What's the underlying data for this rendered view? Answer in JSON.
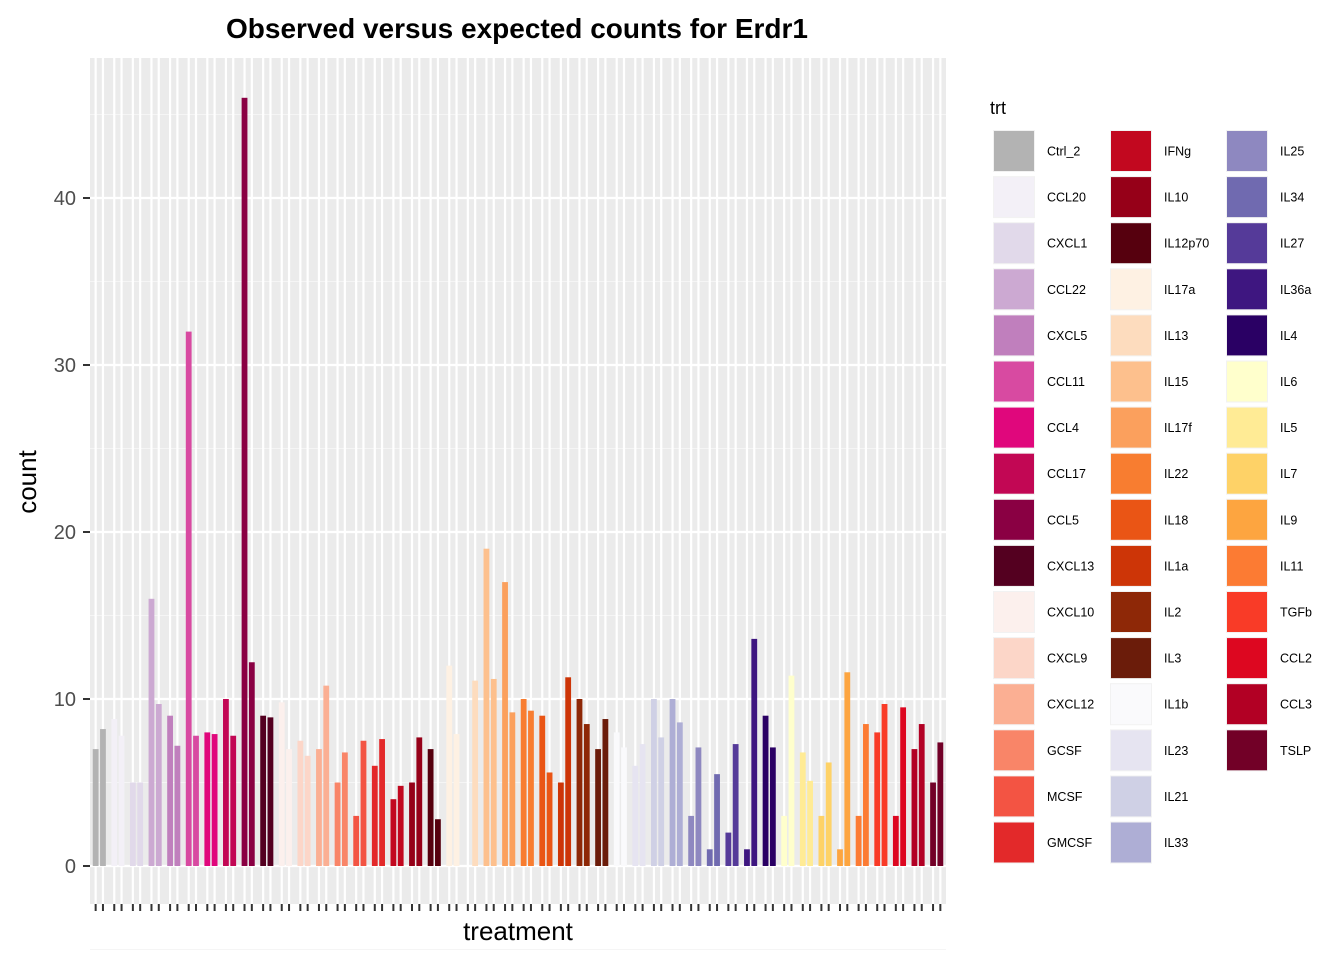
{
  "chart_data": {
    "type": "bar",
    "title": "Observed versus expected counts for Erdr1",
    "xlabel": "treatment",
    "ylabel": "count",
    "ylim": [
      0,
      47
    ],
    "yticks": [
      0,
      10,
      20,
      30,
      40
    ],
    "grid": true,
    "legend": {
      "title": "trt",
      "placement": "right",
      "columns": 3,
      "entries": [
        {
          "label": "Ctrl_2",
          "color": "#b3b3b3"
        },
        {
          "label": "CCL20",
          "color": "#f3f0f7"
        },
        {
          "label": "CXCL1",
          "color": "#e1d9ea"
        },
        {
          "label": "CCL22",
          "color": "#cca9d2"
        },
        {
          "label": "CXCL5",
          "color": "#c07fbd"
        },
        {
          "label": "CCL11",
          "color": "#d84aa1"
        },
        {
          "label": "CCL4",
          "color": "#e0077c"
        },
        {
          "label": "CCL17",
          "color": "#c20754"
        },
        {
          "label": "CCL5",
          "color": "#8a0043"
        },
        {
          "label": "CXCL13",
          "color": "#540020"
        },
        {
          "label": "CXCL10",
          "color": "#fcf0ed"
        },
        {
          "label": "CXCL9",
          "color": "#fcd6c8"
        },
        {
          "label": "CXCL12",
          "color": "#fbaf93"
        },
        {
          "label": "GCSF",
          "color": "#f98568"
        },
        {
          "label": "MCSF",
          "color": "#f35443"
        },
        {
          "label": "GMCSF",
          "color": "#e3292a"
        },
        {
          "label": "IFNg",
          "color": "#c2081f"
        },
        {
          "label": "IL10",
          "color": "#960018"
        },
        {
          "label": "IL12p70",
          "color": "#56000e"
        },
        {
          "label": "IL17a",
          "color": "#fef1e3"
        },
        {
          "label": "IL13",
          "color": "#fddcbe"
        },
        {
          "label": "IL15",
          "color": "#fdc08d"
        },
        {
          "label": "IL17f",
          "color": "#fba05d"
        },
        {
          "label": "IL22",
          "color": "#f87d30"
        },
        {
          "label": "IL18",
          "color": "#ea5515"
        },
        {
          "label": "IL1a",
          "color": "#cd3507"
        },
        {
          "label": "IL2",
          "color": "#8e2807"
        },
        {
          "label": "IL3",
          "color": "#6b1c0a"
        },
        {
          "label": "IL1b",
          "color": "#fafafc"
        },
        {
          "label": "IL23",
          "color": "#e6e4f1"
        },
        {
          "label": "IL21",
          "color": "#cfd0e5"
        },
        {
          "label": "IL33",
          "color": "#aeaed5"
        },
        {
          "label": "IL25",
          "color": "#8e88c0"
        },
        {
          "label": "IL34",
          "color": "#706ab0"
        },
        {
          "label": "IL27",
          "color": "#553a99"
        },
        {
          "label": "IL36a",
          "color": "#3e1680"
        },
        {
          "label": "IL4",
          "color": "#2a0064"
        },
        {
          "label": "IL6",
          "color": "#ffffcc"
        },
        {
          "label": "IL5",
          "color": "#ffeb95"
        },
        {
          "label": "IL7",
          "color": "#fed267"
        },
        {
          "label": "IL9",
          "color": "#fda540"
        },
        {
          "label": "IL11",
          "color": "#fc7b33"
        },
        {
          "label": "TGFb",
          "color": "#f93b27"
        },
        {
          "label": "CCL2",
          "color": "#dd0720"
        },
        {
          "label": "CCL3",
          "color": "#b20024"
        },
        {
          "label": "TSLP",
          "color": "#720027"
        }
      ]
    },
    "categories": [
      "Ctrl_2",
      "CCL20",
      "CXCL1",
      "CCL22",
      "CXCL5",
      "CCL11",
      "CCL4",
      "CCL17",
      "CCL5",
      "CXCL13",
      "CXCL10",
      "CXCL9",
      "CXCL12",
      "GCSF",
      "MCSF",
      "GMCSF",
      "IFNg",
      "IL10",
      "IL12p70",
      "IL17a",
      "IL13",
      "IL15",
      "IL17f",
      "IL22",
      "IL18",
      "IL1a",
      "IL2",
      "IL3",
      "IL1b",
      "IL23",
      "IL21",
      "IL33",
      "IL25",
      "IL34",
      "IL27",
      "IL36a",
      "IL4",
      "IL6",
      "IL5",
      "IL7",
      "IL9",
      "IL11",
      "TGFb",
      "CCL2",
      "CCL3",
      "TSLP"
    ],
    "series": [
      {
        "values": [
          7.0,
          8.8,
          5.0,
          16.0,
          9.0,
          32.0,
          8.0,
          10.0,
          46.0,
          9.0,
          9.8,
          7.5,
          7.0,
          5.0,
          3.0,
          6.0,
          4.0,
          5.0,
          7.0,
          12.0,
          0.0,
          19.0,
          17.0,
          10.0,
          9.0,
          5.0,
          10.0,
          7.0,
          8.0,
          6.0,
          10.0,
          10.0,
          3.0,
          1.0,
          2.0,
          1.0,
          9.0,
          3.0,
          6.8,
          3.0,
          1.0,
          3.0,
          8.0,
          3.0,
          7.0,
          5.0
        ]
      },
      {
        "values": [
          8.2,
          7.8,
          5.0,
          9.7,
          7.2,
          7.8,
          7.9,
          7.8,
          12.2,
          8.9,
          7.0,
          6.6,
          10.8,
          6.8,
          7.5,
          7.6,
          4.8,
          7.7,
          2.8,
          7.9,
          11.1,
          11.2,
          9.2,
          9.3,
          5.6,
          11.3,
          8.5,
          8.8,
          7.1,
          7.3,
          7.7,
          8.6,
          7.1,
          5.5,
          7.3,
          13.6,
          7.1,
          11.4,
          5.1,
          6.2,
          11.6,
          8.5,
          9.7,
          9.5,
          8.5,
          7.4
        ]
      }
    ]
  }
}
